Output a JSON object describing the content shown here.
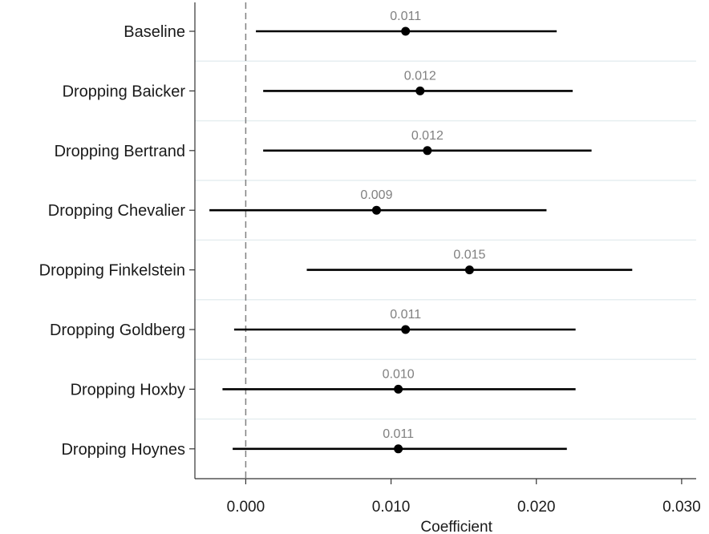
{
  "chart_data": {
    "type": "scatter",
    "subtype": "coefficient-plot",
    "title": "",
    "xlabel": "Coefficient",
    "ylabel": "",
    "xlim": [
      -0.0035,
      0.031
    ],
    "xticks": [
      0.0,
      0.01,
      0.02,
      0.03
    ],
    "xtick_labels": [
      "0.000",
      "0.010",
      "0.020",
      "0.030"
    ],
    "reference_line": 0.0,
    "grid": "horizontal separators",
    "categories": [
      "Baseline",
      "Dropping Baicker",
      "Dropping Bertrand",
      "Dropping Chevalier",
      "Dropping Finkelstein",
      "Dropping Goldberg",
      "Dropping Hoxby",
      "Dropping Hoynes"
    ],
    "estimates": [
      0.011,
      0.012,
      0.0125,
      0.009,
      0.0154,
      0.011,
      0.0105,
      0.0105
    ],
    "ci_low": [
      0.0007,
      0.0012,
      0.0012,
      -0.0025,
      0.0042,
      -0.0008,
      -0.0016,
      -0.0009
    ],
    "ci_high": [
      0.0214,
      0.0225,
      0.0238,
      0.0207,
      0.0266,
      0.0227,
      0.0227,
      0.0221
    ],
    "labels": [
      "0.011",
      "0.012",
      "0.012",
      "0.009",
      "0.015",
      "0.011",
      "0.010",
      "0.011"
    ],
    "colors": {
      "line": "#000000",
      "point": "#000000",
      "label": "#808080",
      "reference": "#808080",
      "separator": "#e6eef0",
      "axis": "#333333"
    }
  }
}
